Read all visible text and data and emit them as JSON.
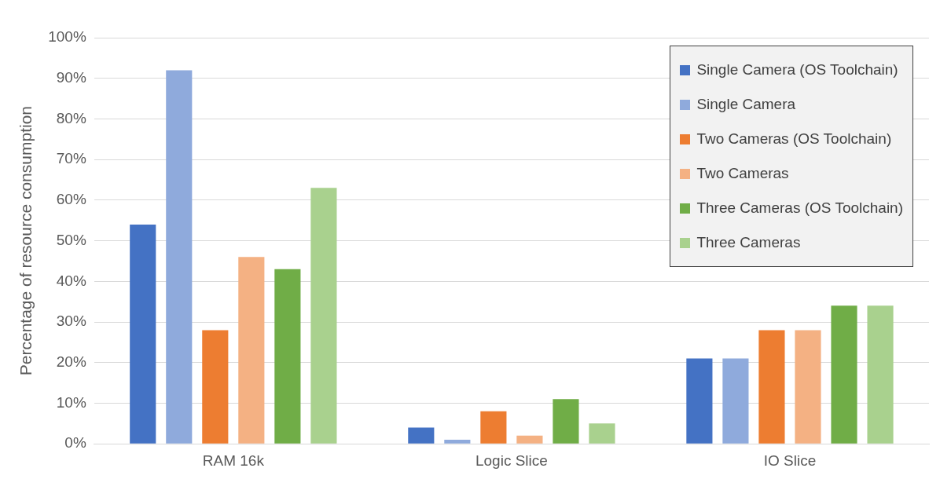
{
  "chart_data": {
    "type": "bar",
    "ylabel": "Percentage of resource consumption",
    "categories": [
      "RAM 16k",
      "Logic Slice",
      "IO Slice"
    ],
    "series": [
      {
        "name": "Single Camera (OS Toolchain)",
        "color": "#4472c4",
        "values": [
          54,
          4,
          21
        ]
      },
      {
        "name": "Single Camera",
        "color": "#8faadc",
        "values": [
          92,
          1,
          21
        ]
      },
      {
        "name": "Two Cameras (OS Toolchain)",
        "color": "#ed7d31",
        "values": [
          28,
          8,
          28
        ]
      },
      {
        "name": "Two Cameras",
        "color": "#f4b183",
        "values": [
          46,
          2,
          28
        ]
      },
      {
        "name": "Three Cameras (OS Toolchain)",
        "color": "#70ad47",
        "values": [
          43,
          11,
          34
        ]
      },
      {
        "name": "Three Cameras",
        "color": "#a9d18e",
        "values": [
          63,
          5,
          34
        ]
      }
    ],
    "ylim": [
      0,
      100
    ],
    "yticks": [
      {
        "value": 0,
        "label": "0%"
      },
      {
        "value": 10,
        "label": "10%"
      },
      {
        "value": 20,
        "label": "20%"
      },
      {
        "value": 30,
        "label": "30%"
      },
      {
        "value": 40,
        "label": "40%"
      },
      {
        "value": 50,
        "label": "50%"
      },
      {
        "value": 60,
        "label": "60%"
      },
      {
        "value": 70,
        "label": "70%"
      },
      {
        "value": 80,
        "label": "80%"
      },
      {
        "value": 90,
        "label": "90%"
      },
      {
        "value": 100,
        "label": "100%"
      }
    ],
    "grid": "y",
    "legend": "top right"
  }
}
